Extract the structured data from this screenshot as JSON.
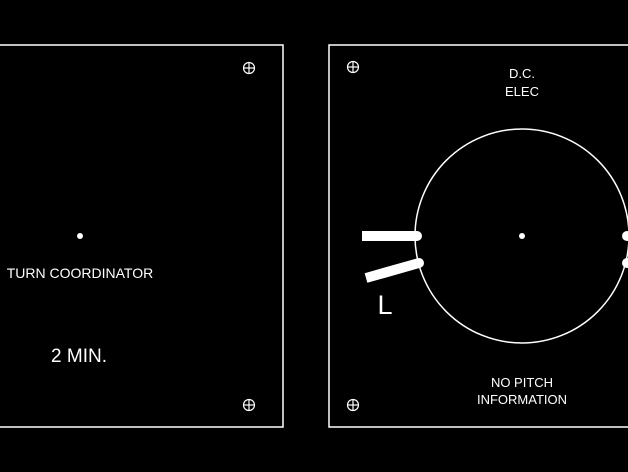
{
  "colors": {
    "background": "#000000",
    "line": "#ffffff"
  },
  "left_panel": {
    "label_main": "TURN COORDINATOR",
    "label_sub": "2 MIN."
  },
  "right_panel": {
    "title_line1": "D.C.",
    "title_line2": "ELEC",
    "marker_letter": "L",
    "footer_line1": "NO PITCH",
    "footer_line2": "INFORMATION"
  },
  "icons": {
    "screw": "screw-head-icon"
  }
}
